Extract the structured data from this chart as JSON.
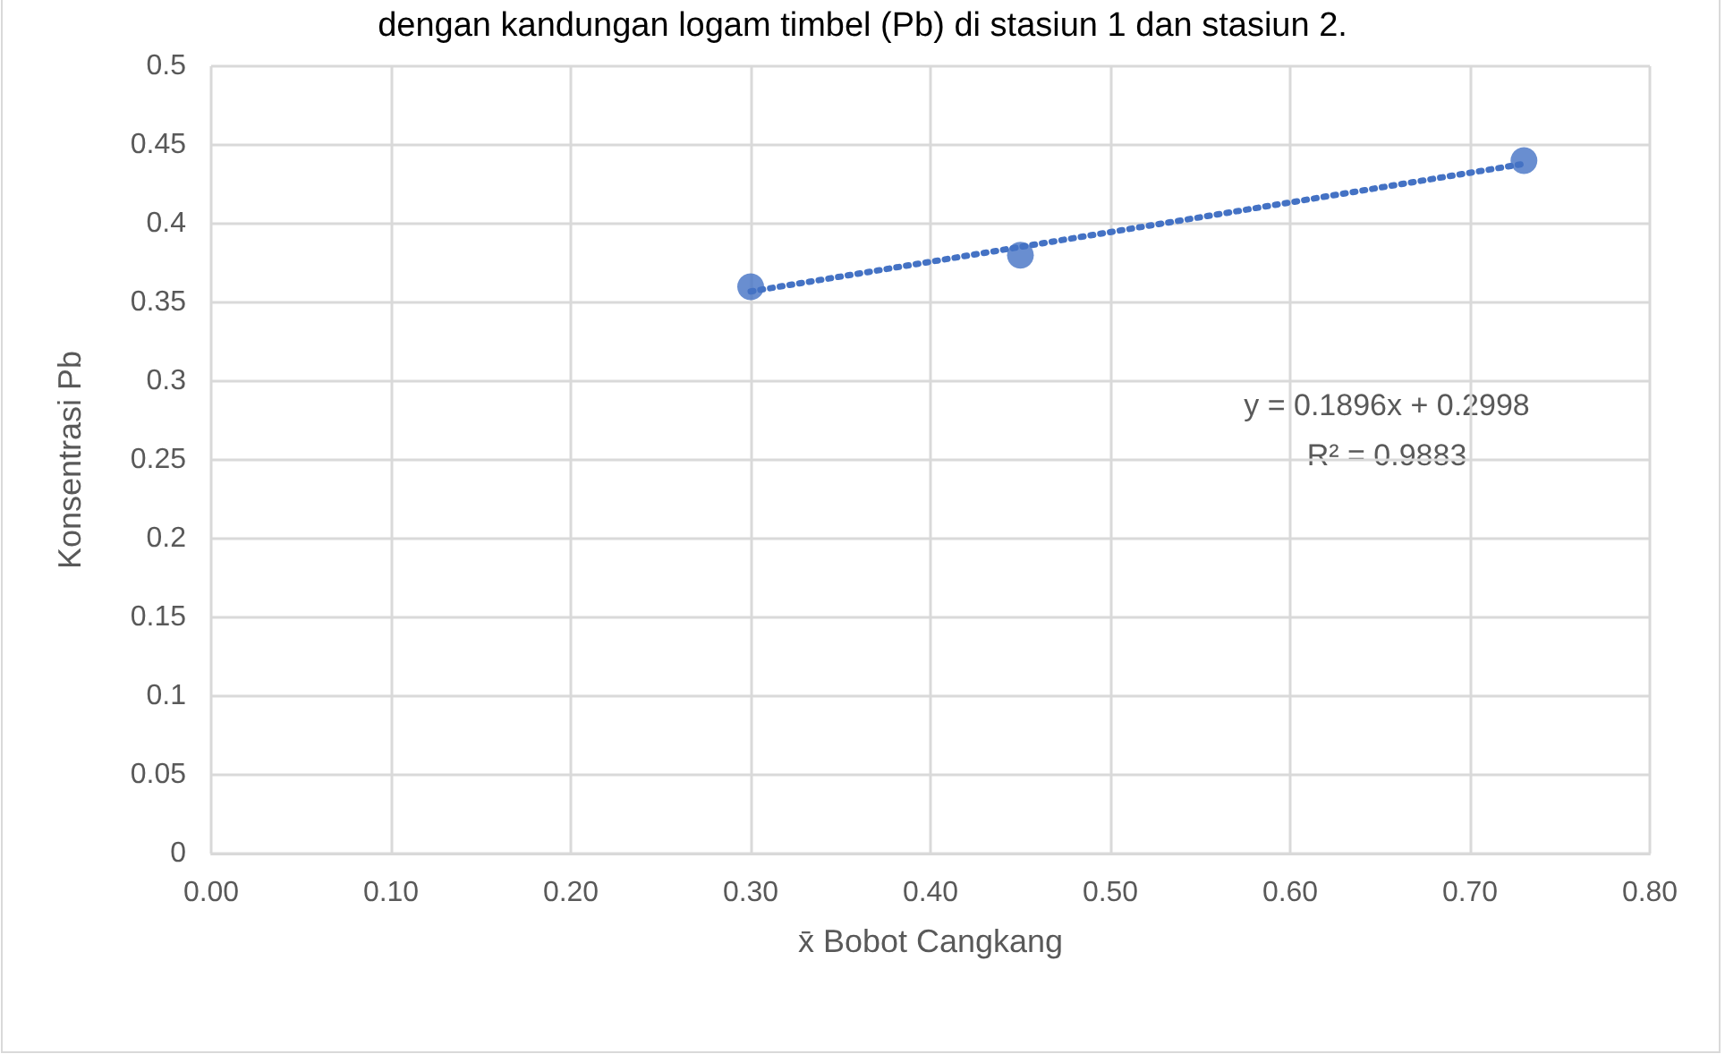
{
  "chart_data": {
    "type": "scatter",
    "title": "dengan kandungan logam timbel (Pb) di stasiun 1 dan stasiun 2.",
    "xlabel": "x̄ Bobot Cangkang",
    "ylabel": "Konsentrasi Pb",
    "annotations": [
      "y = 0.1896x + 0.2998",
      "R² = 0.9883"
    ],
    "x": [
      0.3,
      0.45,
      0.73
    ],
    "series": [
      {
        "type": "scatter",
        "color": "#4472c4",
        "marker": "circle",
        "values": [
          0.36,
          0.38,
          0.44
        ]
      },
      {
        "type": "line",
        "color": "#4472c4",
        "marker": "none",
        "line_style": "dotted",
        "x": [
          0.3,
          0.73
        ],
        "values": [
          0.357,
          0.438
        ]
      }
    ],
    "xlim": [
      0,
      0.8
    ],
    "xticks": [
      {
        "value": 0,
        "label": "0.00"
      },
      {
        "value": 0.1,
        "label": "0.10"
      },
      {
        "value": 0.2,
        "label": "0.20"
      },
      {
        "value": 0.3,
        "label": "0.30"
      },
      {
        "value": 0.4,
        "label": "0.40"
      },
      {
        "value": 0.5,
        "label": "0.50"
      },
      {
        "value": 0.6,
        "label": "0.60"
      },
      {
        "value": 0.7,
        "label": "0.70"
      },
      {
        "value": 0.8,
        "label": "0.80"
      }
    ],
    "ylim": [
      0,
      0.5
    ],
    "yticks": [
      0,
      0.05,
      0.1,
      0.15,
      0.2,
      0.25,
      0.3,
      0.35,
      0.4,
      0.45,
      0.5
    ],
    "grid": true
  }
}
